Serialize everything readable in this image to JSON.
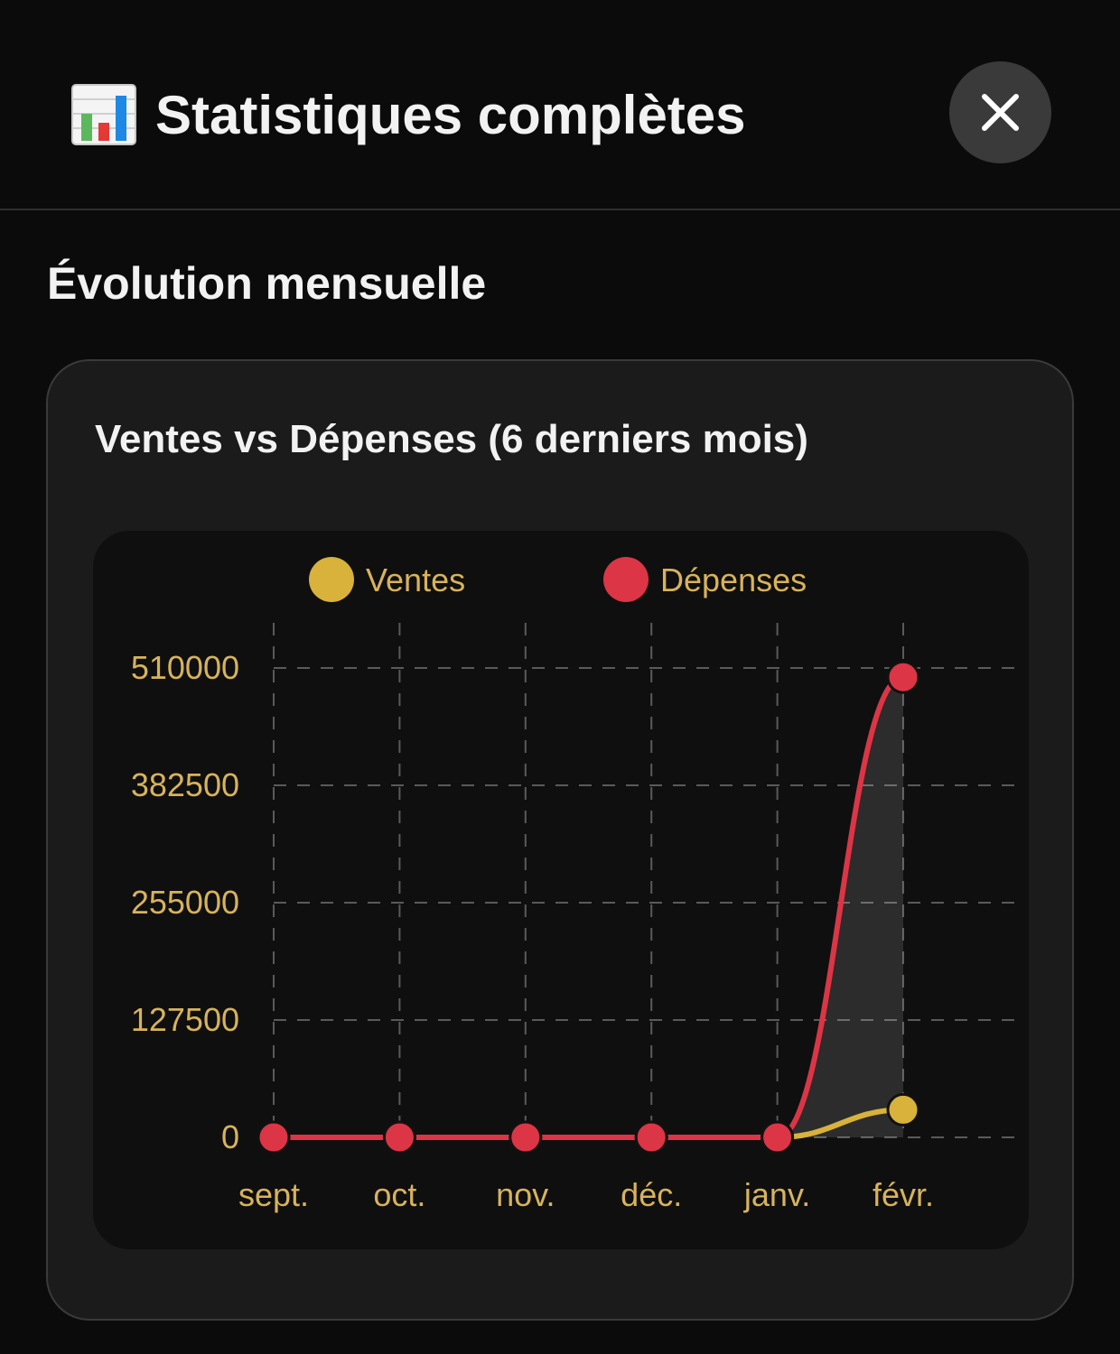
{
  "header": {
    "title": "Statistiques complètes",
    "icon": "bar-chart-icon",
    "close_icon": "close-icon"
  },
  "section": {
    "title": "Évolution mensuelle"
  },
  "card": {
    "title": "Ventes vs Dépenses (6 derniers mois)"
  },
  "colors": {
    "ventes": "#d8b23a",
    "depenses": "#dc3545",
    "tick_text": "#d8b35a",
    "background": "#0b0b0b"
  },
  "chart_data": {
    "type": "line",
    "categories": [
      "sept.",
      "oct.",
      "nov.",
      "déc.",
      "janv.",
      "févr."
    ],
    "series": [
      {
        "name": "Ventes",
        "values": [
          0,
          0,
          0,
          0,
          0,
          30000
        ]
      },
      {
        "name": "Dépenses",
        "values": [
          0,
          0,
          0,
          0,
          0,
          500000
        ]
      }
    ],
    "yticks": [
      "0",
      "127500",
      "255000",
      "382500",
      "510000"
    ],
    "ylim": [
      0,
      510000
    ],
    "grid": true,
    "legend": "top-center"
  }
}
